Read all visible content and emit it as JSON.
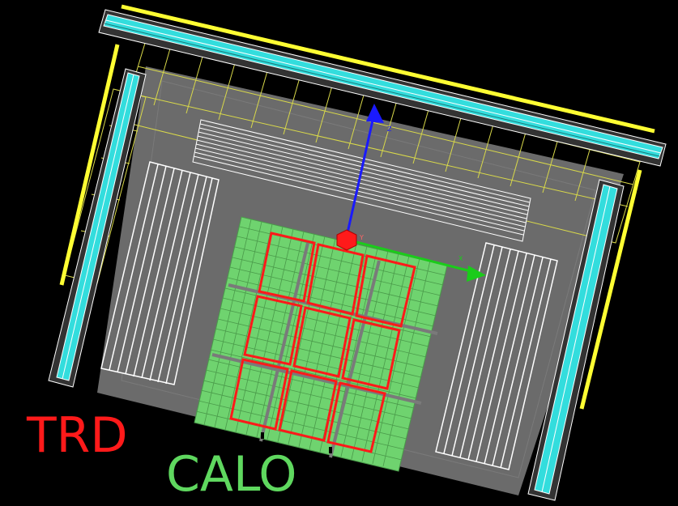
{
  "labels": {
    "trd": "TRD",
    "calo": "CALO"
  },
  "colors": {
    "background": "#000000",
    "frame_gray": "#6b6b6b",
    "support_yellow": "#ffff33",
    "cyan_panel": "#33dddd",
    "trd_red": "#ff1a1a",
    "calo_green": "#6fd36f",
    "axis_blue": "#1a1aff",
    "axis_green": "#1acc1a",
    "origin_red": "#ff1a1a"
  },
  "icons": {
    "origin": "origin-marker-icon"
  }
}
